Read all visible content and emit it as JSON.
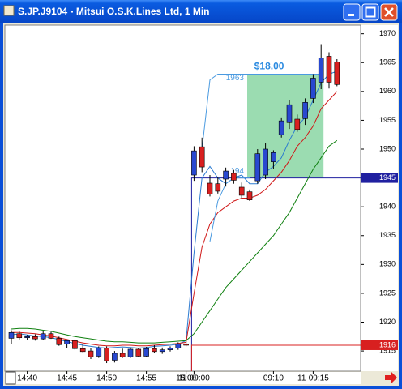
{
  "chart_data": {
    "type": "candlestick",
    "title": "S.JP.J9104 - Mitsui O.S.K.Lines Ltd, 1 Min",
    "categories": [
      null,
      null,
      "14:40",
      null,
      null,
      null,
      null,
      "14:45",
      null,
      null,
      null,
      null,
      "14:50",
      null,
      null,
      null,
      null,
      "14:55",
      null,
      null,
      null,
      null,
      "15:00",
      "11-09:00",
      null,
      null,
      null,
      null,
      null,
      null,
      null,
      null,
      null,
      "09:10",
      null,
      null,
      null,
      null,
      "11-09:15",
      null,
      null,
      null
    ],
    "open": [
      1917.2,
      1918.0,
      1917.3,
      1917.5,
      1917.1,
      1918.0,
      1917.2,
      1916.2,
      1916.8,
      1915.4,
      1915.0,
      1914.1,
      1915.5,
      1913.4,
      1914.6,
      1914.0,
      1915.3,
      1914.1,
      1915.4,
      1914.9,
      1915.2,
      1915.5,
      1916.2,
      1945.5,
      1950.4,
      1944.1,
      1944.0,
      1944.8,
      1945.8,
      1943.4,
      1942.6,
      1944.5,
      1945.5,
      1947.8,
      1952.5,
      1954.6,
      1955.2,
      1955.3,
      1958.8,
      1961.6,
      1966.1,
      1965.1
    ],
    "high": [
      1918.6,
      1918.4,
      1917.8,
      1917.9,
      1918.4,
      1918.3,
      1917.5,
      1917.0,
      1917.0,
      1916.2,
      1915.5,
      1915.8,
      1915.8,
      1915.0,
      1915.4,
      1915.6,
      1915.5,
      1915.7,
      1916.0,
      1915.6,
      1915.8,
      1916.5,
      1916.6,
      1950.5,
      1952.0,
      1945.5,
      1945.2,
      1946.8,
      1946.4,
      1944.2,
      1943.0,
      1950.0,
      1951.0,
      1949.8,
      1955.5,
      1958.5,
      1956.0,
      1958.8,
      1963.0,
      1968.2,
      1966.8,
      1965.6
    ],
    "low": [
      1916.2,
      1917.0,
      1916.9,
      1916.8,
      1916.9,
      1917.1,
      1915.9,
      1915.5,
      1915.2,
      1914.8,
      1913.6,
      1913.8,
      1912.9,
      1913.0,
      1913.8,
      1913.8,
      1913.9,
      1913.9,
      1914.6,
      1914.5,
      1914.9,
      1915.2,
      1915.8,
      1944.5,
      1946.0,
      1941.8,
      1942.3,
      1943.5,
      1944.0,
      1941.5,
      1941.0,
      1944.0,
      1944.8,
      1946.6,
      1952.0,
      1953.5,
      1953.0,
      1954.2,
      1958.0,
      1960.4,
      1960.5,
      1960.9
    ],
    "close": [
      1918.2,
      1917.3,
      1917.5,
      1917.1,
      1918.0,
      1917.2,
      1916.1,
      1916.8,
      1915.4,
      1914.9,
      1914.0,
      1915.5,
      1913.3,
      1914.6,
      1914.0,
      1915.3,
      1914.1,
      1915.4,
      1914.9,
      1915.2,
      1915.5,
      1916.2,
      1916.0,
      1949.7,
      1946.9,
      1942.2,
      1942.7,
      1946.2,
      1944.6,
      1942.0,
      1941.2,
      1949.2,
      1950.0,
      1949.4,
      1954.9,
      1957.7,
      1953.4,
      1958.1,
      1962.3,
      1965.8,
      1961.6,
      1961.2
    ],
    "up_color": "#2848d0",
    "down_color": "#d82020",
    "series": [
      {
        "color": "#2a7ad0",
        "values": [
          1917.8,
          1918,
          1917.8,
          1917.6,
          1917.5,
          1917.3,
          1917,
          1916.6,
          1916.3,
          1916,
          1915.8,
          1915.6,
          1915.5,
          1915.6,
          1915.7,
          1915.6,
          1915.5,
          1915.6,
          1915.8,
          1915.9,
          1916,
          1916.2,
          1916.8,
          1932,
          1945,
          1947,
          1945,
          1944,
          1945,
          1945.5,
          1944,
          1944,
          1946,
          1947,
          1948.5,
          1951.5,
          1954,
          1955.5,
          1958.5,
          1961.5,
          1963,
          1963.5
        ]
      },
      {
        "color": "#d01818",
        "values": [
          1918.2,
          1918.2,
          1918.1,
          1918,
          1917.8,
          1917.6,
          1917.3,
          1917,
          1916.7,
          1916.4,
          1916.2,
          1916,
          1915.9,
          1915.9,
          1916,
          1916,
          1915.9,
          1915.9,
          1916,
          1916.1,
          1916.2,
          1916.3,
          1916.5,
          1925,
          1933,
          1937,
          1939,
          1940,
          1941,
          1941.5,
          1941.5,
          1942,
          1943,
          1944.5,
          1946,
          1948,
          1950.5,
          1952,
          1954,
          1957,
          1958.5,
          1960
        ]
      },
      {
        "color": "#108010",
        "values": [
          1918.8,
          1918.9,
          1918.9,
          1918.8,
          1918.6,
          1918.4,
          1918.1,
          1917.8,
          1917.5,
          1917.3,
          1917.1,
          1916.9,
          1916.7,
          1916.6,
          1916.6,
          1916.5,
          1916.4,
          1916.4,
          1916.4,
          1916.5,
          1916.6,
          1916.7,
          1916.8,
          1918,
          1920,
          1922,
          1924,
          1926,
          1927.5,
          1929,
          1930.5,
          1932,
          1933.5,
          1935,
          1937,
          1939,
          1941.5,
          1944,
          1946.5,
          1948.5,
          1950.5,
          1951.5
        ]
      },
      {
        "color": "#4a9ae0",
        "values": [
          null,
          null,
          null,
          null,
          null,
          null,
          null,
          null,
          null,
          null,
          null,
          null,
          null,
          null,
          null,
          null,
          null,
          null,
          null,
          null,
          null,
          null,
          null,
          null,
          1950,
          1962,
          1963,
          1963,
          1963,
          1963,
          1963,
          1963,
          1963,
          1963,
          1963,
          1963,
          1963,
          1963,
          1963,
          1963,
          null,
          null
        ]
      },
      {
        "color": "#4a9ae0",
        "values": [
          null,
          null,
          null,
          null,
          null,
          null,
          null,
          null,
          null,
          null,
          null,
          null,
          null,
          null,
          null,
          null,
          null,
          null,
          null,
          null,
          null,
          null,
          null,
          null,
          null,
          1934,
          1941,
          1944,
          1945,
          1945,
          1945,
          null,
          null,
          null,
          null,
          null,
          null,
          null,
          null,
          null,
          null,
          null
        ]
      }
    ],
    "reference_lines": [
      {
        "value": 1945,
        "color": "#2020a0",
        "start_index": 23
      },
      {
        "value": 1916,
        "color": "#d82020",
        "start_index": 23
      }
    ],
    "box": {
      "from": 30,
      "to": 39,
      "high": 1963,
      "low": 1945,
      "label": "$18.00",
      "low_label": "194",
      "color": "#90d8a8"
    },
    "ylim": [
      1911.5,
      1971.5
    ],
    "yticks": [
      1915,
      1920,
      1925,
      1930,
      1935,
      1940,
      1945,
      1950,
      1955,
      1960,
      1965,
      1970
    ]
  }
}
